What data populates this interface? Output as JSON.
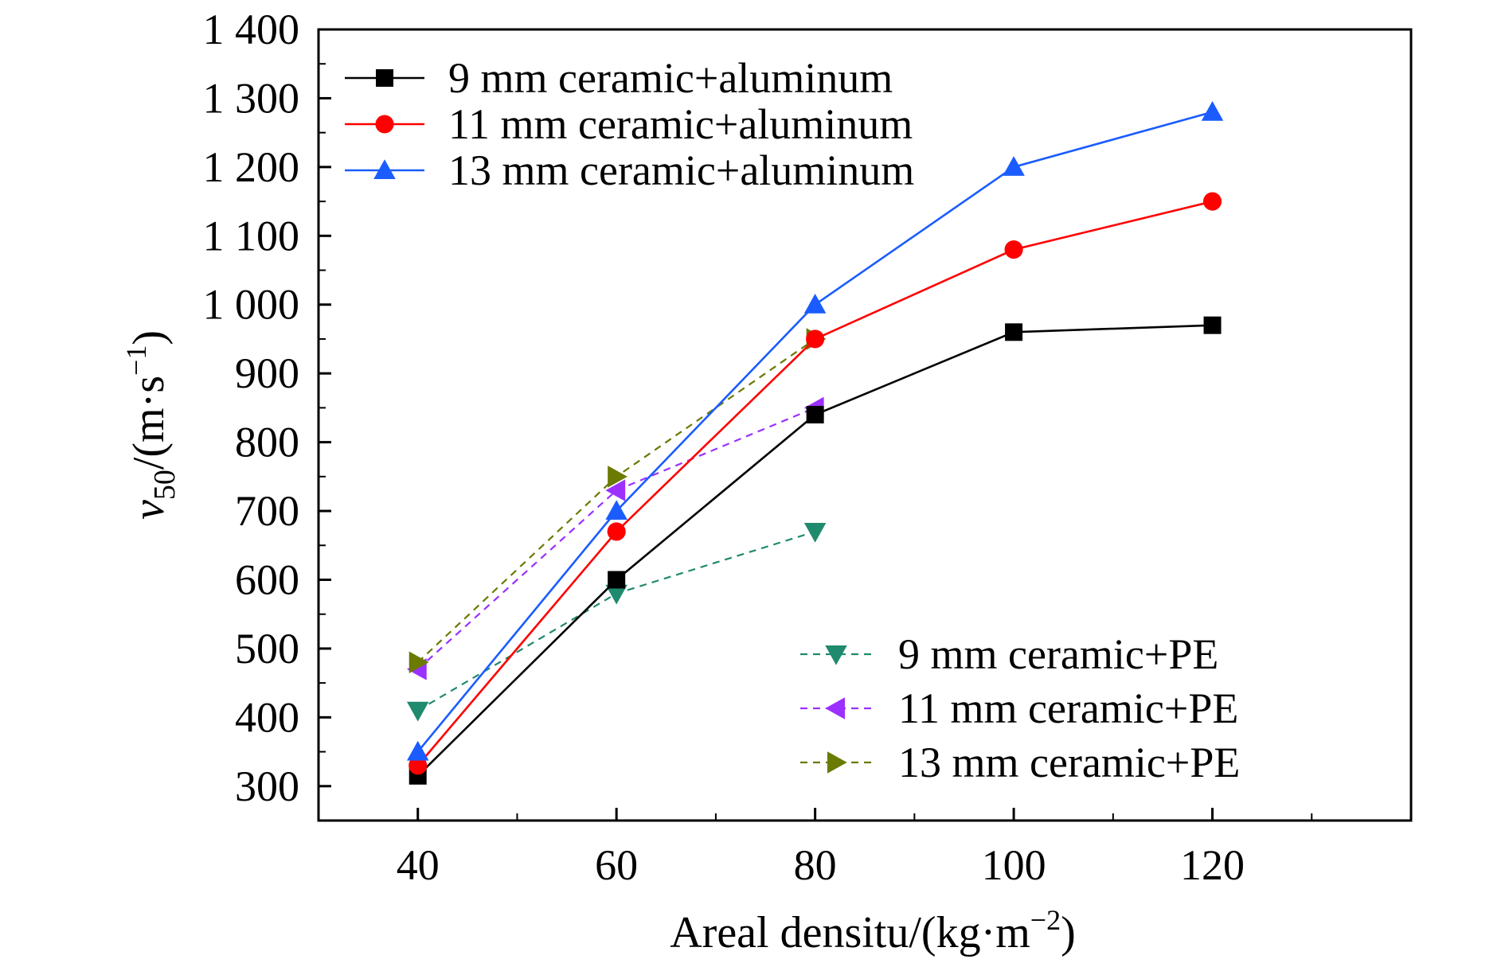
{
  "chart_data": {
    "type": "line",
    "title": "",
    "xlabel": "Areal densitu/(kg·m",
    "xlabel_sup": "−2",
    "xlabel_end": ")",
    "ylabel_v": "v",
    "ylabel_sub": "50",
    "ylabel_mid": "/(m·s",
    "ylabel_sup": "−1",
    "ylabel_end": ")",
    "xlim": [
      30,
      140
    ],
    "ylim": [
      250,
      1400
    ],
    "xticks": [
      40,
      60,
      80,
      100,
      120
    ],
    "xtick_labels": [
      "40",
      "60",
      "80",
      "100",
      "120"
    ],
    "yticks": [
      300,
      400,
      500,
      600,
      700,
      800,
      900,
      1000,
      1100,
      1200,
      1300,
      1400
    ],
    "ytick_labels": [
      "300",
      "400",
      "500",
      "600",
      "700",
      "800",
      "900",
      "1 000",
      "1 100",
      "1 200",
      "1 300",
      "1 400"
    ],
    "grid": false,
    "legend_positions": [
      "top-left",
      "bottom-right"
    ],
    "series": [
      {
        "name": "9 mm ceramic+aluminum",
        "x": [
          40,
          60,
          80,
          100,
          120
        ],
        "y": [
          315,
          600,
          840,
          960,
          970
        ],
        "color": "#000000",
        "marker": "square",
        "dashed": false,
        "legend_group": 0
      },
      {
        "name": "11 mm ceramic+aluminum",
        "x": [
          40,
          60,
          80,
          100,
          120
        ],
        "y": [
          330,
          670,
          950,
          1080,
          1150
        ],
        "color": "#ff0000",
        "marker": "circle",
        "dashed": false,
        "legend_group": 0
      },
      {
        "name": "13 mm ceramic+aluminum",
        "x": [
          40,
          60,
          80,
          100,
          120
        ],
        "y": [
          350,
          700,
          1000,
          1200,
          1280
        ],
        "color": "#1a5cff",
        "marker": "triangle-up",
        "dashed": false,
        "legend_group": 0
      },
      {
        "name": "9 mm ceramic+PE",
        "x": [
          40,
          60,
          80
        ],
        "y": [
          410,
          580,
          670
        ],
        "color": "#1f8a6e",
        "marker": "triangle-down",
        "dashed": true,
        "legend_group": 1
      },
      {
        "name": "11 mm ceramic+PE",
        "x": [
          40,
          60,
          80
        ],
        "y": [
          470,
          730,
          850
        ],
        "color": "#9b30ff",
        "marker": "triangle-left",
        "dashed": true,
        "legend_group": 1
      },
      {
        "name": "13 mm ceramic+PE",
        "x": [
          40,
          60,
          80
        ],
        "y": [
          480,
          750,
          950
        ],
        "color": "#6b7a00",
        "marker": "triangle-right",
        "dashed": true,
        "legend_group": 1
      }
    ]
  }
}
